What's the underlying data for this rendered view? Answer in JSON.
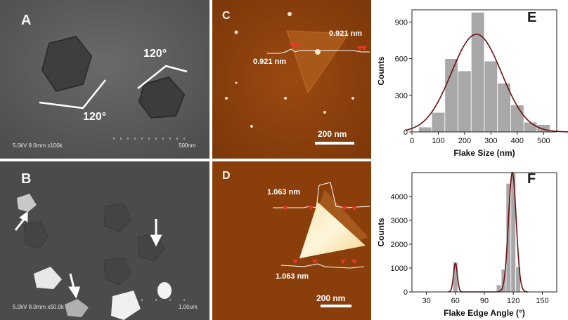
{
  "panels": {
    "A": {
      "label": "A",
      "angle1": "120°",
      "angle2": "120°",
      "info": "5.0kV 8.0mm x100k",
      "scale": "500nm"
    },
    "B": {
      "label": "B",
      "info": "5.0kV 8.0mm x50.0k",
      "scale": "1.00um"
    },
    "C": {
      "label": "C",
      "height_left": "0.921 nm",
      "height_right": "0.921 nm",
      "scale": "200 nm"
    },
    "D": {
      "label": "D",
      "height_top": "1.063 nm",
      "height_bottom": "1.063 nm",
      "scale": "200 nm"
    },
    "E": {
      "label": "E"
    },
    "F": {
      "label": "F"
    }
  },
  "colors": {
    "bar": "#a8a8a8",
    "fit": "#6b0f0f",
    "afm": "#8a3f0b"
  },
  "chart_data": [
    {
      "id": "E",
      "type": "bar",
      "xlabel": "Flake Size (nm)",
      "ylabel": "Counts",
      "xlim": [
        0,
        550
      ],
      "ylim": [
        0,
        1000
      ],
      "xticks": [
        0,
        100,
        200,
        300,
        400,
        500
      ],
      "yticks": [
        0,
        300,
        600,
        900
      ],
      "bin_width": 50,
      "x": [
        50,
        100,
        150,
        200,
        250,
        300,
        350,
        400,
        450,
        500
      ],
      "values": [
        40,
        160,
        600,
        500,
        980,
        580,
        400,
        220,
        80,
        60
      ],
      "fit": {
        "type": "gaussian",
        "center": 245,
        "sigma": 95,
        "amplitude": 800
      }
    },
    {
      "id": "F",
      "type": "bar",
      "xlabel": "Flake Edge Angle (°)",
      "ylabel": "Counts",
      "xlim": [
        15,
        165
      ],
      "ylim": [
        0,
        5000
      ],
      "xticks": [
        30,
        60,
        90,
        120,
        150
      ],
      "yticks": [
        0,
        1000,
        2000,
        3000,
        4000
      ],
      "bin_width": 5,
      "x": [
        60,
        105,
        110,
        115,
        120,
        125
      ],
      "values": [
        1250,
        300,
        950,
        4550,
        5000,
        1050
      ],
      "fit": [
        {
          "center": 60,
          "sigma": 2,
          "amplitude": 1200
        },
        {
          "center": 119,
          "sigma": 4,
          "amplitude": 5000
        }
      ]
    }
  ]
}
